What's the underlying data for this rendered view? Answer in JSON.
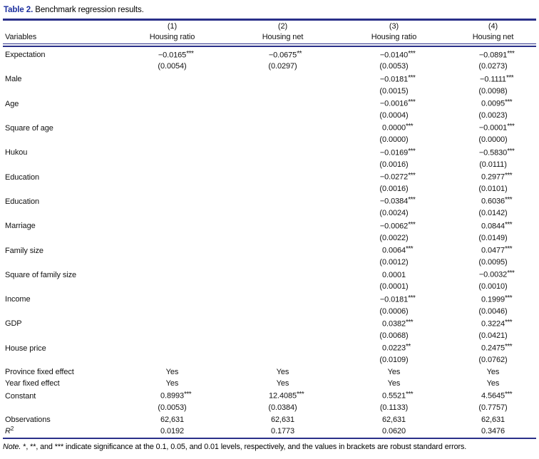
{
  "colors": {
    "accent_blue": "#1c2f9e",
    "rule_navy": "#2a3089",
    "text": "#121212"
  },
  "title": {
    "label": "Table 2.",
    "text": "Benchmark regression results."
  },
  "table": {
    "variables_header": "Variables",
    "columns": [
      {
        "number": "(1)",
        "label": "Housing ratio"
      },
      {
        "number": "(2)",
        "label": "Housing net"
      },
      {
        "number": "(3)",
        "label": "Housing ratio"
      },
      {
        "number": "(4)",
        "label": "Housing net"
      }
    ],
    "rows": [
      {
        "label": "Expectation",
        "type": "coef",
        "estimates": [
          "−0.0165***",
          "−0.0675**",
          "−0.0140***",
          "−0.0891***"
        ],
        "std_errors": [
          "(0.0054)",
          "(0.0297)",
          "(0.0053)",
          "(0.0273)"
        ]
      },
      {
        "label": "Male",
        "type": "coef",
        "estimates": [
          "",
          "",
          "−0.0181***",
          "−0.1111***"
        ],
        "std_errors": [
          "",
          "",
          "(0.0015)",
          "(0.0098)"
        ]
      },
      {
        "label": "Age",
        "type": "coef",
        "estimates": [
          "",
          "",
          "−0.0016***",
          "0.0095***"
        ],
        "std_errors": [
          "",
          "",
          "(0.0004)",
          "(0.0023)"
        ]
      },
      {
        "label": "Square of age",
        "type": "coef",
        "estimates": [
          "",
          "",
          "0.0000***",
          "−0.0001***"
        ],
        "std_errors": [
          "",
          "",
          "(0.0000)",
          "(0.0000)"
        ]
      },
      {
        "label": "Hukou",
        "type": "coef",
        "estimates": [
          "",
          "",
          "−0.0169***",
          "−0.5830***"
        ],
        "std_errors": [
          "",
          "",
          "(0.0016)",
          "(0.0111)"
        ]
      },
      {
        "label": "Education",
        "type": "coef",
        "estimates": [
          "",
          "",
          "−0.0272***",
          "0.2977***"
        ],
        "std_errors": [
          "",
          "",
          "(0.0016)",
          "(0.0101)"
        ]
      },
      {
        "label": "Education",
        "type": "coef",
        "estimates": [
          "",
          "",
          "−0.0384***",
          "0.6036***"
        ],
        "std_errors": [
          "",
          "",
          "(0.0024)",
          "(0.0142)"
        ]
      },
      {
        "label": "Marriage",
        "type": "coef",
        "estimates": [
          "",
          "",
          "−0.0062***",
          "0.0844***"
        ],
        "std_errors": [
          "",
          "",
          "(0.0022)",
          "(0.0149)"
        ]
      },
      {
        "label": "Family size",
        "type": "coef",
        "estimates": [
          "",
          "",
          "0.0064***",
          "0.0477***"
        ],
        "std_errors": [
          "",
          "",
          "(0.0012)",
          "(0.0095)"
        ]
      },
      {
        "label": "Square of family size",
        "type": "coef",
        "estimates": [
          "",
          "",
          "0.0001",
          "−0.0032***"
        ],
        "std_errors": [
          "",
          "",
          "(0.0001)",
          "(0.0010)"
        ]
      },
      {
        "label": "Income",
        "type": "coef",
        "estimates": [
          "",
          "",
          "−0.0181***",
          "0.1999***"
        ],
        "std_errors": [
          "",
          "",
          "(0.0006)",
          "(0.0046)"
        ]
      },
      {
        "label": "GDP",
        "type": "coef",
        "estimates": [
          "",
          "",
          "0.0382***",
          "0.3224***"
        ],
        "std_errors": [
          "",
          "",
          "(0.0068)",
          "(0.0421)"
        ]
      },
      {
        "label": "House price",
        "type": "coef",
        "estimates": [
          "",
          "",
          "0.0223**",
          "0.2475***"
        ],
        "std_errors": [
          "",
          "",
          "(0.0109)",
          "(0.0762)"
        ]
      },
      {
        "label": "Province fixed effect",
        "type": "single",
        "values": [
          "Yes",
          "Yes",
          "Yes",
          "Yes"
        ]
      },
      {
        "label": "Year fixed effect",
        "type": "single",
        "values": [
          "Yes",
          "Yes",
          "Yes",
          "Yes"
        ]
      },
      {
        "label": "Constant",
        "type": "coef",
        "estimates": [
          "0.8993***",
          "12.4085***",
          "0.5521***",
          "4.5645***"
        ],
        "std_errors": [
          "(0.0053)",
          "(0.0384)",
          "(0.1133)",
          "(0.7757)"
        ]
      },
      {
        "label": "Observations",
        "type": "single",
        "values": [
          "62,631",
          "62,631",
          "62,631",
          "62,631"
        ]
      },
      {
        "label": "R",
        "label_sup": "2",
        "label_italic": true,
        "type": "single",
        "values": [
          "0.0192",
          "0.1773",
          "0.0620",
          "0.3476"
        ]
      }
    ]
  },
  "note": {
    "prefix": "Note.",
    "text": "*, **, and *** indicate significance at the 0.1, 0.05, and 0.01 levels, respectively, and the values in brackets are robust standard errors."
  }
}
